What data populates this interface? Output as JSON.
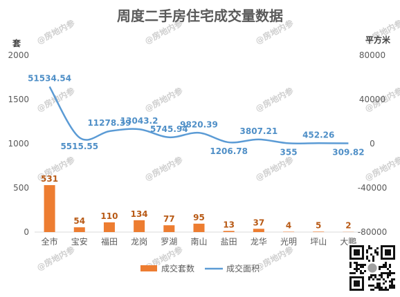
{
  "chart_data": {
    "type": "bar+line",
    "title": "周度二手房住宅成交量数据",
    "categories": [
      "全市",
      "宝安",
      "福田",
      "龙岗",
      "罗湖",
      "南山",
      "盐田",
      "龙华",
      "光明",
      "坪山",
      "大鹏"
    ],
    "series": [
      {
        "name": "成交套数",
        "type": "bar",
        "axis": "left",
        "values": [
          531,
          54,
          110,
          134,
          77,
          95,
          13,
          37,
          4,
          5,
          2
        ],
        "labels": [
          "531",
          "54",
          "110",
          "134",
          "77",
          "95",
          "13",
          "37",
          "4",
          "5",
          "2"
        ],
        "color": "#ed7d31"
      },
      {
        "name": "成交面积",
        "type": "line",
        "axis": "right",
        "values": [
          51534.54,
          5515.55,
          11278.39,
          13043.2,
          5745.94,
          9820.39,
          1206.78,
          3807.21,
          355,
          452.26,
          309.82
        ],
        "labels": [
          "51534.54",
          "5515.55",
          "11278.39",
          "13043.2",
          "5745.94",
          "9820.39",
          "1206.78",
          "3807.21",
          "355",
          "452.26",
          "309.82"
        ],
        "color": "#5b9bd5",
        "smooth": true
      }
    ],
    "y_left": {
      "unit": "套",
      "ticks": [
        0,
        500,
        1000,
        1500,
        2000
      ],
      "tick_labels": [
        "0",
        "500",
        "1000",
        "1500",
        "2000"
      ],
      "ylim": [
        0,
        2000
      ]
    },
    "y_right": {
      "unit": "平方米",
      "ticks": [
        -80000,
        -40000,
        0,
        40000,
        80000
      ],
      "tick_labels": [
        "-80000",
        "-40000",
        "0",
        "40000",
        "80000"
      ],
      "ylim": [
        -80000,
        80000
      ]
    },
    "legend": {
      "position": "bottom",
      "items": [
        "成交套数",
        "成交面积"
      ]
    },
    "grid": false
  },
  "watermark": "@房地内参"
}
